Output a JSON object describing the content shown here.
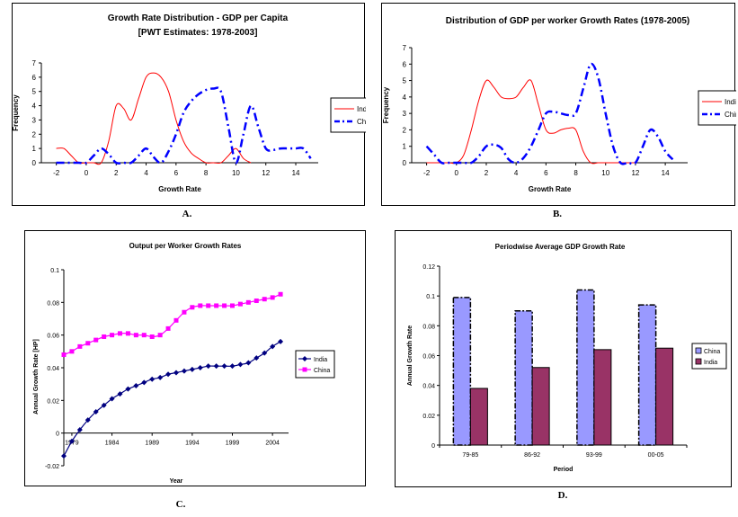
{
  "captions": {
    "a": "A.",
    "b": "B.",
    "c": "C.",
    "d": "D."
  },
  "chart_data": [
    {
      "id": "A",
      "type": "line",
      "title": "Growth Rate Distribution - GDP per Capita",
      "subtitle": "[PWT Estimates: 1978-2003]",
      "xlabel": "Growth Rate",
      "ylabel": "Frequency",
      "xlim": [
        -3,
        15.5
      ],
      "ylim": [
        0,
        7
      ],
      "xticks": [
        -2,
        0,
        2,
        4,
        6,
        8,
        10,
        12,
        14
      ],
      "yticks": [
        0,
        1,
        2,
        3,
        4,
        5,
        6,
        7
      ],
      "legend_position": "right",
      "series": [
        {
          "name": "India",
          "color": "#ff0000",
          "style": "solid",
          "x": [
            -2,
            -1.5,
            -1,
            -0.5,
            0,
            0.5,
            1,
            1.5,
            2,
            2.5,
            3,
            3.5,
            4,
            4.5,
            5,
            5.5,
            6,
            6.5,
            7,
            7.5,
            8,
            8.5,
            9,
            9.5,
            10,
            10.5,
            11
          ],
          "y": [
            1,
            1,
            0.5,
            0,
            0,
            0,
            0,
            1.5,
            4,
            3.8,
            3,
            4.5,
            6,
            6.3,
            6,
            5,
            3,
            1.5,
            0.7,
            0.3,
            0,
            0,
            0,
            0.5,
            1,
            0.3,
            0
          ]
        },
        {
          "name": "China",
          "color": "#0000ff",
          "style": "dash-dot",
          "x": [
            -2,
            -1.5,
            -1,
            -0.5,
            0,
            0.5,
            1,
            1.5,
            2,
            2.5,
            3,
            3.5,
            4,
            4.5,
            5,
            5.5,
            6,
            6.5,
            7,
            7.5,
            8,
            8.5,
            9,
            9.5,
            10,
            10.5,
            11,
            11.5,
            12,
            12.5,
            13,
            13.5,
            14,
            14.5,
            15
          ],
          "y": [
            0,
            0,
            0,
            0,
            0,
            0.5,
            1,
            0.6,
            0,
            0,
            0,
            0.5,
            1,
            0.4,
            0,
            0.8,
            2,
            3.5,
            4.3,
            4.8,
            5.1,
            5.2,
            5,
            2.5,
            0,
            2,
            4,
            2.5,
            1,
            0.9,
            1,
            1,
            1,
            1,
            0.3
          ]
        }
      ]
    },
    {
      "id": "B",
      "type": "line",
      "title": "Distribution of GDP per worker Growth Rates (1978-2005)",
      "xlabel": "Growth Rate",
      "ylabel": "Frequency",
      "xlim": [
        -3,
        15.5
      ],
      "ylim": [
        0,
        7
      ],
      "xticks": [
        -2,
        0,
        2,
        4,
        6,
        8,
        10,
        12,
        14
      ],
      "yticks": [
        0,
        1,
        2,
        3,
        4,
        5,
        6,
        7
      ],
      "legend_position": "right",
      "series": [
        {
          "name": "India",
          "color": "#ff0000",
          "style": "solid",
          "x": [
            -2,
            -1.5,
            -1,
            -0.5,
            0,
            0.5,
            1,
            1.5,
            2,
            2.5,
            3,
            3.5,
            4,
            4.5,
            5,
            5.5,
            6,
            6.5,
            7,
            7.5,
            8,
            8.5,
            9,
            9.5,
            10,
            10.5,
            11,
            11.5,
            12
          ],
          "y": [
            0,
            0,
            0,
            0,
            0,
            0.5,
            2,
            3.8,
            5,
            4.6,
            4,
            3.9,
            4,
            4.6,
            5,
            3.5,
            2,
            1.8,
            2,
            2.1,
            2,
            0.7,
            0,
            0,
            0,
            0,
            0,
            0,
            0
          ]
        },
        {
          "name": "China",
          "color": "#0000ff",
          "style": "dash-dot",
          "x": [
            -2,
            -1.5,
            -1,
            -0.5,
            0,
            0.5,
            1,
            1.5,
            2,
            2.5,
            3,
            3.5,
            4,
            4.5,
            5,
            5.5,
            6,
            6.5,
            7,
            7.5,
            8,
            8.5,
            9,
            9.5,
            10,
            10.5,
            11,
            11.5,
            12,
            12.5,
            13,
            13.5,
            14,
            14.5
          ],
          "y": [
            1,
            0.5,
            0,
            0,
            0,
            0,
            0,
            0.4,
            1,
            1.1,
            0.9,
            0.2,
            0,
            0.3,
            1,
            2,
            3,
            3.1,
            3,
            2.9,
            3,
            4.5,
            6,
            5.2,
            3,
            1,
            0,
            0,
            0,
            1,
            2,
            1.6,
            0.7,
            0.2
          ]
        }
      ]
    },
    {
      "id": "C",
      "type": "line",
      "title": "Output per Worker Growth Rates",
      "xlabel": "Year",
      "ylabel": "Annual Growth Rate [HP]",
      "xlim": [
        1978,
        2006
      ],
      "ylim": [
        -0.02,
        0.1
      ],
      "xticks": [
        1979,
        1984,
        1989,
        1994,
        1999,
        2004
      ],
      "yticks": [
        -0.02,
        0,
        0.02,
        0.04,
        0.06,
        0.08,
        0.1
      ],
      "xtick_labels": [
        "1979",
        "1984",
        "1989",
        "1994",
        "1999",
        "2004"
      ],
      "ytick_labels": [
        "-0.02",
        "0",
        "0.02",
        "0.04",
        "0.06",
        "0.08",
        "0.1"
      ],
      "legend_position": "right",
      "series": [
        {
          "name": "India",
          "color": "#000080",
          "marker": "diamond",
          "x": [
            1978,
            1979,
            1980,
            1981,
            1982,
            1983,
            1984,
            1985,
            1986,
            1987,
            1988,
            1989,
            1990,
            1991,
            1992,
            1993,
            1994,
            1995,
            1996,
            1997,
            1998,
            1999,
            2000,
            2001,
            2002,
            2003,
            2004,
            2005
          ],
          "y": [
            -0.014,
            -0.005,
            0.002,
            0.008,
            0.013,
            0.017,
            0.021,
            0.024,
            0.027,
            0.029,
            0.031,
            0.033,
            0.034,
            0.036,
            0.037,
            0.038,
            0.039,
            0.04,
            0.041,
            0.041,
            0.041,
            0.041,
            0.042,
            0.043,
            0.046,
            0.049,
            0.053,
            0.056
          ]
        },
        {
          "name": "China",
          "color": "#ff00ff",
          "marker": "square",
          "x": [
            1978,
            1979,
            1980,
            1981,
            1982,
            1983,
            1984,
            1985,
            1986,
            1987,
            1988,
            1989,
            1990,
            1991,
            1992,
            1993,
            1994,
            1995,
            1996,
            1997,
            1998,
            1999,
            2000,
            2001,
            2002,
            2003,
            2004,
            2005
          ],
          "y": [
            0.048,
            0.05,
            0.053,
            0.055,
            0.057,
            0.059,
            0.06,
            0.061,
            0.061,
            0.06,
            0.06,
            0.059,
            0.06,
            0.064,
            0.069,
            0.074,
            0.077,
            0.078,
            0.078,
            0.078,
            0.078,
            0.078,
            0.079,
            0.08,
            0.081,
            0.082,
            0.083,
            0.085
          ]
        }
      ]
    },
    {
      "id": "D",
      "type": "bar",
      "title": "Periodwise Average GDP Growth Rate",
      "xlabel": "Period",
      "ylabel": "Annual Growth Rate",
      "ylim": [
        0,
        0.12
      ],
      "yticks": [
        0,
        0.02,
        0.04,
        0.06,
        0.08,
        0.1,
        0.12
      ],
      "ytick_labels": [
        "0",
        "0.02",
        "0.04",
        "0.06",
        "0.08",
        "0.1",
        "0.12"
      ],
      "categories": [
        "79-85",
        "86-92",
        "93-99",
        "00-05"
      ],
      "legend_position": "right",
      "series": [
        {
          "name": "China",
          "color": "#9999ff",
          "values": [
            0.099,
            0.09,
            0.104,
            0.094
          ]
        },
        {
          "name": "India",
          "color": "#993366",
          "values": [
            0.038,
            0.052,
            0.064,
            0.065
          ]
        }
      ]
    }
  ]
}
